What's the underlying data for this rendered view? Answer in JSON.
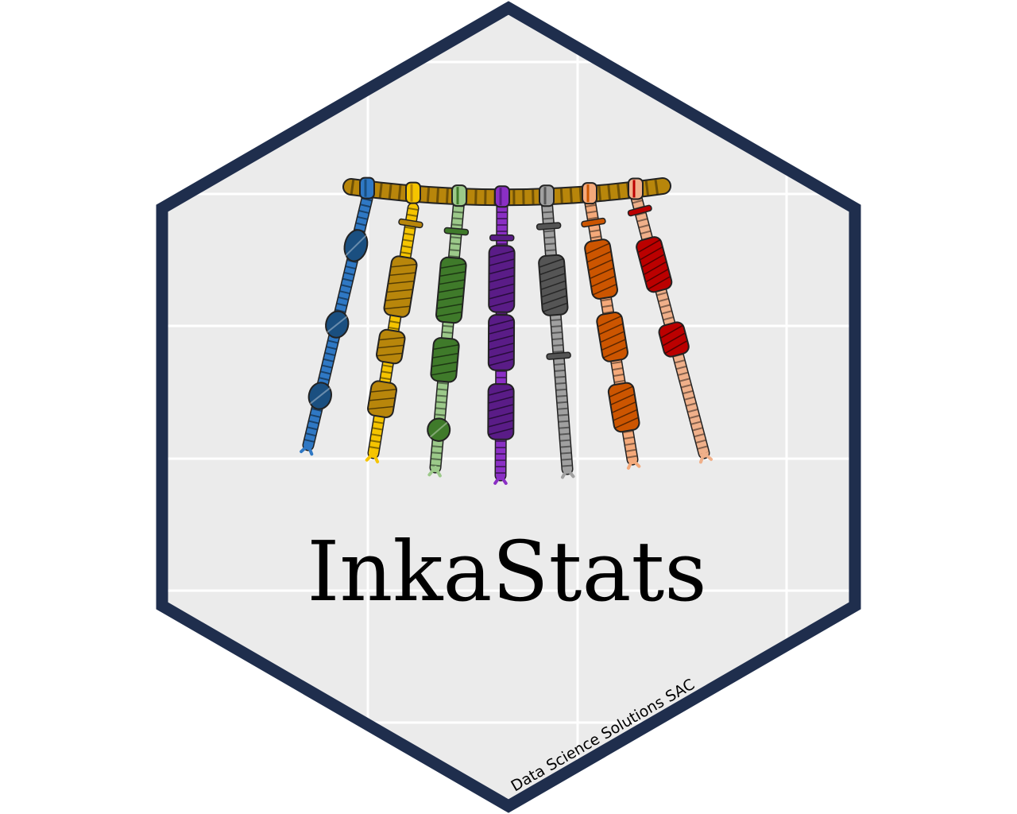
{
  "logo": {
    "title": "InkaStats",
    "credit": "Data Science Solutions SAC",
    "panel_color": "#ebebeb",
    "border_color": "#1f2e4d",
    "grid_color": "#ffffff"
  },
  "quipu": {
    "top_cord_color": "#b8860b",
    "pendant_cords": [
      {
        "name": "blue-cord",
        "light": "#2f78c4",
        "dark": "#1a4f80"
      },
      {
        "name": "yellow-cord",
        "light": "#f5c400",
        "dark": "#b8860b"
      },
      {
        "name": "green-cord",
        "light": "#9cc98a",
        "dark": "#3f7a2a"
      },
      {
        "name": "purple-cord",
        "light": "#8a2fc4",
        "dark": "#5a1c87"
      },
      {
        "name": "gray-cord",
        "light": "#a0a0a0",
        "dark": "#555555"
      },
      {
        "name": "orange-cord",
        "light": "#f4a97a",
        "dark": "#cc5500"
      },
      {
        "name": "red-cord",
        "light": "#f0b08a",
        "dark": "#bb0000"
      }
    ]
  }
}
